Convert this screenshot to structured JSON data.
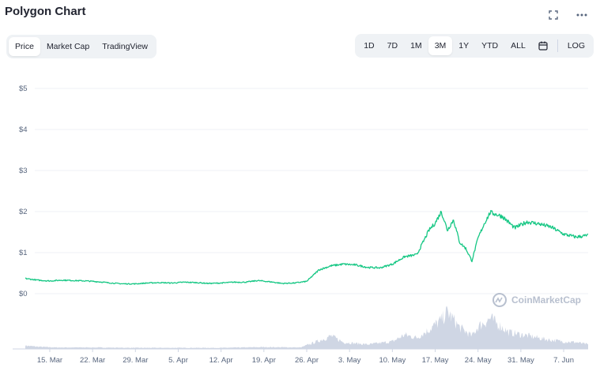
{
  "header": {
    "title": "Polygon Chart"
  },
  "tabs": {
    "left": [
      "Price",
      "Market Cap",
      "TradingView"
    ],
    "left_active": 0
  },
  "ranges": {
    "items": [
      "1D",
      "7D",
      "1M",
      "3M",
      "1Y",
      "YTD",
      "ALL"
    ],
    "active": 3,
    "log_label": "LOG"
  },
  "icons": [
    "fullscreen-icon",
    "more-icon",
    "calendar-icon",
    "coinmarketcap-logo-icon"
  ],
  "watermark": "CoinMarketCap",
  "colors": {
    "line": "#16c784",
    "volume": "#cfd6e4",
    "grid": "#eff2f5"
  },
  "chart_data": {
    "type": "line",
    "title": "Polygon Chart",
    "ylabel": "",
    "xlabel": "",
    "y_tick_labels": [
      "$0",
      "$1",
      "$2",
      "$3",
      "$4",
      "$5"
    ],
    "y_ticks": [
      0,
      1,
      2,
      3,
      4,
      5
    ],
    "ylim": [
      0,
      5
    ],
    "x_tick_labels": [
      "15. Mar",
      "22. Mar",
      "29. Mar",
      "5. Apr",
      "12. Apr",
      "19. Apr",
      "26. Apr",
      "3. May",
      "10. May",
      "17. May",
      "24. May",
      "31. May",
      "7. Jun"
    ],
    "x_tick_dates": [
      "2021-03-15",
      "2021-03-22",
      "2021-03-29",
      "2021-04-05",
      "2021-04-12",
      "2021-04-19",
      "2021-04-26",
      "2021-05-03",
      "2021-05-10",
      "2021-05-17",
      "2021-05-24",
      "2021-05-31",
      "2021-06-07"
    ],
    "x_range": [
      "2021-03-11",
      "2021-06-11"
    ],
    "grid": true,
    "series": [
      {
        "type": "line",
        "points": [
          [
            "2021-03-11",
            0.37
          ],
          [
            "2021-03-13",
            0.33
          ],
          [
            "2021-03-15",
            0.31
          ],
          [
            "2021-03-17",
            0.33
          ],
          [
            "2021-03-19",
            0.32
          ],
          [
            "2021-03-21",
            0.31
          ],
          [
            "2021-03-23",
            0.29
          ],
          [
            "2021-03-25",
            0.26
          ],
          [
            "2021-03-27",
            0.24
          ],
          [
            "2021-03-29",
            0.24
          ],
          [
            "2021-03-31",
            0.26
          ],
          [
            "2021-04-02",
            0.27
          ],
          [
            "2021-04-04",
            0.26
          ],
          [
            "2021-04-06",
            0.28
          ],
          [
            "2021-04-08",
            0.27
          ],
          [
            "2021-04-10",
            0.25
          ],
          [
            "2021-04-12",
            0.26
          ],
          [
            "2021-04-14",
            0.28
          ],
          [
            "2021-04-16",
            0.28
          ],
          [
            "2021-04-18",
            0.32
          ],
          [
            "2021-04-20",
            0.29
          ],
          [
            "2021-04-22",
            0.25
          ],
          [
            "2021-04-24",
            0.26
          ],
          [
            "2021-04-26",
            0.3
          ],
          [
            "2021-04-28",
            0.58
          ],
          [
            "2021-04-30",
            0.68
          ],
          [
            "2021-05-02",
            0.72
          ],
          [
            "2021-05-04",
            0.7
          ],
          [
            "2021-05-06",
            0.64
          ],
          [
            "2021-05-08",
            0.63
          ],
          [
            "2021-05-10",
            0.72
          ],
          [
            "2021-05-12",
            0.9
          ],
          [
            "2021-05-14",
            0.95
          ],
          [
            "2021-05-16",
            1.55
          ],
          [
            "2021-05-17",
            1.72
          ],
          [
            "2021-05-18",
            2.0
          ],
          [
            "2021-05-19",
            1.55
          ],
          [
            "2021-05-20",
            1.8
          ],
          [
            "2021-05-21",
            1.25
          ],
          [
            "2021-05-22",
            1.1
          ],
          [
            "2021-05-23",
            0.8
          ],
          [
            "2021-05-24",
            1.35
          ],
          [
            "2021-05-25",
            1.7
          ],
          [
            "2021-05-26",
            1.98
          ],
          [
            "2021-05-28",
            1.88
          ],
          [
            "2021-05-30",
            1.6
          ],
          [
            "2021-06-01",
            1.75
          ],
          [
            "2021-06-03",
            1.7
          ],
          [
            "2021-06-05",
            1.62
          ],
          [
            "2021-06-07",
            1.45
          ],
          [
            "2021-06-09",
            1.38
          ],
          [
            "2021-06-11",
            1.42
          ]
        ]
      },
      {
        "type": "volume",
        "points": [
          [
            "2021-03-11",
            0.09
          ],
          [
            "2021-03-13",
            0.06
          ],
          [
            "2021-03-16",
            0.04
          ],
          [
            "2021-03-22",
            0.04
          ],
          [
            "2021-03-29",
            0.03
          ],
          [
            "2021-04-05",
            0.03
          ],
          [
            "2021-04-12",
            0.03
          ],
          [
            "2021-04-19",
            0.05
          ],
          [
            "2021-04-25",
            0.04
          ],
          [
            "2021-04-28",
            0.22
          ],
          [
            "2021-04-30",
            0.35
          ],
          [
            "2021-05-02",
            0.18
          ],
          [
            "2021-05-06",
            0.12
          ],
          [
            "2021-05-10",
            0.2
          ],
          [
            "2021-05-12",
            0.38
          ],
          [
            "2021-05-14",
            0.3
          ],
          [
            "2021-05-16",
            0.52
          ],
          [
            "2021-05-18",
            0.78
          ],
          [
            "2021-05-19",
            1.0
          ],
          [
            "2021-05-21",
            0.58
          ],
          [
            "2021-05-23",
            0.35
          ],
          [
            "2021-05-24",
            0.6
          ],
          [
            "2021-05-26",
            0.82
          ],
          [
            "2021-05-27",
            0.7
          ],
          [
            "2021-05-29",
            0.45
          ],
          [
            "2021-06-01",
            0.36
          ],
          [
            "2021-06-04",
            0.26
          ],
          [
            "2021-06-07",
            0.2
          ],
          [
            "2021-06-09",
            0.18
          ],
          [
            "2021-06-11",
            0.12
          ]
        ]
      }
    ]
  }
}
